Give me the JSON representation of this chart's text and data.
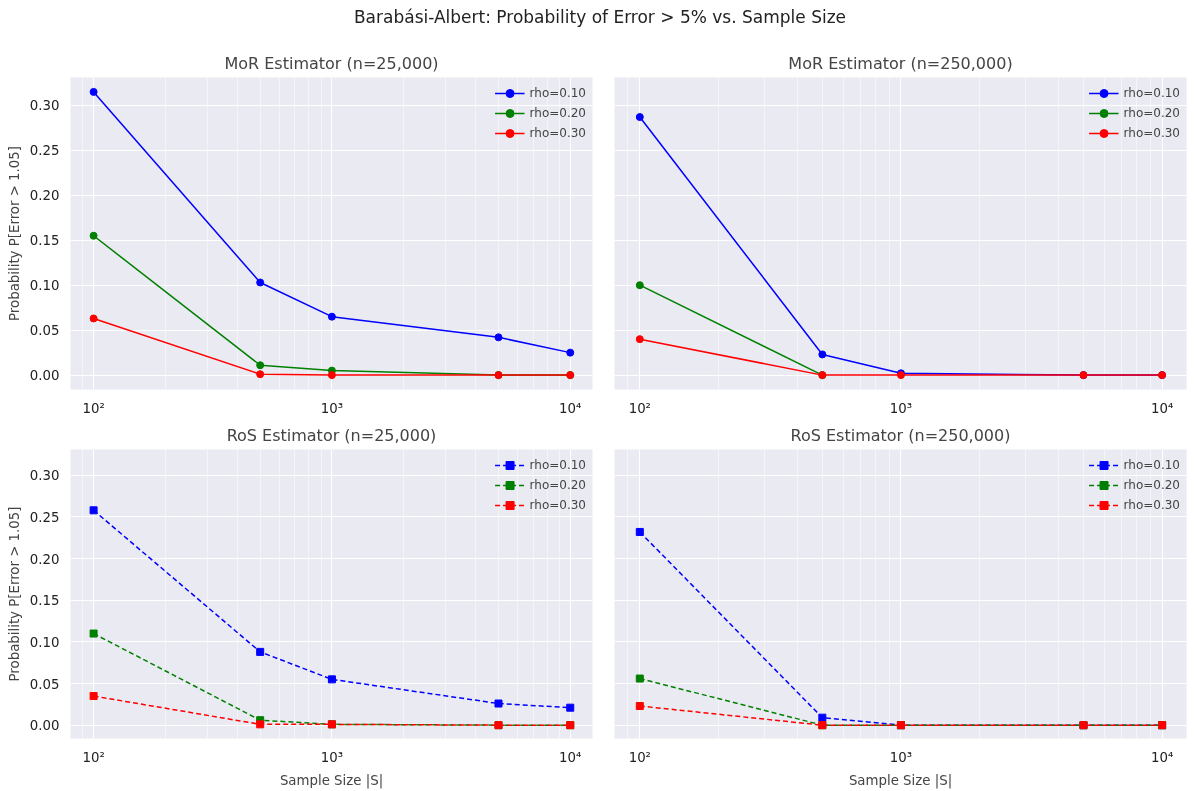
{
  "chart_data": [
    {
      "type": "line",
      "title": "MoR Estimator (n=25,000)",
      "ylabel": "Probability P[Error > 1.05]",
      "annotations": [
        "Barabási-Albert: Probability of Error > 5% vs. Sample Size"
      ],
      "x": [
        100,
        500,
        1000,
        5000,
        10000
      ],
      "log": "x",
      "xlim": [
        80,
        12400
      ],
      "xticks": [
        {
          "value": 100,
          "label": "10²"
        },
        {
          "value": 1000,
          "label": "10³"
        },
        {
          "value": 10000,
          "label": "10⁴"
        }
      ],
      "ylim": [
        -0.016,
        0.331
      ],
      "yticks": [
        {
          "value": 0,
          "label": "0.00"
        },
        0.05,
        {
          "value": 0.1,
          "label": "0.10"
        },
        0.15,
        {
          "value": 0.2,
          "label": "0.20"
        },
        0.25,
        {
          "value": 0.3,
          "label": "0.30"
        }
      ],
      "grid": true,
      "legend": "top right",
      "marker": "circle",
      "line_style": "solid",
      "series": [
        {
          "name": "rho=0.10",
          "color": "#0000ff",
          "values": [
            0.315,
            0.103,
            0.065,
            0.042,
            0.025
          ]
        },
        {
          "name": "rho=0.20",
          "color": "#008000",
          "values": [
            0.155,
            0.011,
            0.005,
            0.0,
            0.0
          ]
        },
        {
          "name": "rho=0.30",
          "color": "#ff0000",
          "values": [
            0.063,
            0.001,
            0.0,
            0.0,
            0.0
          ]
        }
      ]
    },
    {
      "type": "line",
      "title": "MoR Estimator (n=250,000)",
      "x": [
        100,
        500,
        1000,
        5000,
        10000
      ],
      "log": "x",
      "xlim": [
        80,
        12400
      ],
      "xticks": [
        {
          "value": 100,
          "label": "10²"
        },
        {
          "value": 1000,
          "label": "10³"
        },
        {
          "value": 10000,
          "label": "10⁴"
        }
      ],
      "ylim": [
        -0.016,
        0.331
      ],
      "yticks": [
        0.0,
        0.05,
        0.1,
        0.15,
        0.2,
        0.25,
        0.3
      ],
      "tick_labels": "x",
      "grid": true,
      "legend": "top right",
      "marker": "circle",
      "line_style": "solid",
      "series": [
        {
          "name": "rho=0.10",
          "color": "#0000ff",
          "values": [
            0.287,
            0.023,
            0.002,
            0.0,
            0.0
          ]
        },
        {
          "name": "rho=0.20",
          "color": "#008000",
          "values": [
            0.1,
            0.0,
            null,
            null,
            null
          ]
        },
        {
          "name": "rho=0.30",
          "color": "#ff0000",
          "values": [
            0.04,
            0.0,
            0.0,
            0.0,
            0.0
          ]
        }
      ]
    },
    {
      "type": "line",
      "title": "RoS Estimator (n=25,000)",
      "xlabel": "Sample Size |S|",
      "ylabel": "Probability P[Error > 1.05]",
      "x": [
        100,
        500,
        1000,
        5000,
        10000
      ],
      "log": "x",
      "xlim": [
        80,
        12400
      ],
      "xticks": [
        {
          "value": 100,
          "label": "10²"
        },
        {
          "value": 1000,
          "label": "10³"
        },
        {
          "value": 10000,
          "label": "10⁴"
        }
      ],
      "ylim": [
        -0.016,
        0.331
      ],
      "yticks": [
        {
          "value": 0,
          "label": "0.00"
        },
        0.05,
        {
          "value": 0.1,
          "label": "0.10"
        },
        0.15,
        {
          "value": 0.2,
          "label": "0.20"
        },
        0.25,
        {
          "value": 0.3,
          "label": "0.30"
        }
      ],
      "grid": true,
      "legend": "top right",
      "marker": "square",
      "line_style": "dashed",
      "series": [
        {
          "name": "rho=0.10",
          "color": "#0000ff",
          "values": [
            0.258,
            0.088,
            0.055,
            0.026,
            0.021
          ]
        },
        {
          "name": "rho=0.20",
          "color": "#008000",
          "values": [
            0.11,
            0.006,
            0.001,
            0.0,
            0.0
          ]
        },
        {
          "name": "rho=0.30",
          "color": "#ff0000",
          "values": [
            0.035,
            0.001,
            0.001,
            0.0,
            0.0
          ]
        }
      ]
    },
    {
      "type": "line",
      "title": "RoS Estimator (n=250,000)",
      "xlabel": "Sample Size |S|",
      "x": [
        100,
        500,
        1000,
        5000,
        10000
      ],
      "log": "x",
      "xlim": [
        80,
        12400
      ],
      "xticks": [
        {
          "value": 100,
          "label": "10²"
        },
        {
          "value": 1000,
          "label": "10³"
        },
        {
          "value": 10000,
          "label": "10⁴"
        }
      ],
      "ylim": [
        -0.016,
        0.331
      ],
      "yticks": [
        0.0,
        0.05,
        0.1,
        0.15,
        0.2,
        0.25,
        0.3
      ],
      "tick_labels": "x",
      "grid": true,
      "legend": "top right",
      "marker": "square",
      "line_style": "dashed",
      "series": [
        {
          "name": "rho=0.10",
          "color": "#0000ff",
          "values": [
            0.232,
            0.009,
            0.0,
            0.0,
            0.0
          ]
        },
        {
          "name": "rho=0.20",
          "color": "#008000",
          "values": [
            0.056,
            0.0,
            0.0,
            0.0,
            0.0
          ]
        },
        {
          "name": "rho=0.30",
          "color": "#ff0000",
          "values": [
            0.023,
            0.0,
            0.0,
            0.0,
            0.0
          ]
        }
      ]
    }
  ]
}
